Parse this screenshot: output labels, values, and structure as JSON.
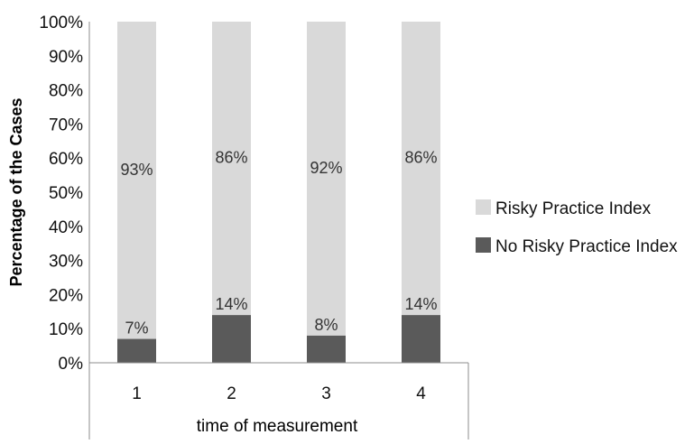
{
  "chart_data": {
    "type": "bar",
    "stacked": true,
    "categories": [
      "1",
      "2",
      "3",
      "4"
    ],
    "series": [
      {
        "name": "No Risky Practice Index",
        "values": [
          7,
          14,
          8,
          14
        ],
        "color": "#5a5a5a",
        "labels": [
          "7%",
          "14%",
          "8%",
          "14%"
        ]
      },
      {
        "name": "Risky Practice Index",
        "values": [
          93,
          86,
          92,
          86
        ],
        "color": "#d9d9d9",
        "labels": [
          "93%",
          "86%",
          "92%",
          "86%"
        ]
      }
    ],
    "xlabel": "time of measurement",
    "ylabel": "Percentage of the Cases",
    "ylim": [
      0,
      100
    ],
    "yticks": [
      "0%",
      "10%",
      "20%",
      "30%",
      "40%",
      "50%",
      "60%",
      "70%",
      "80%",
      "90%",
      "100%"
    ],
    "legend_position": "right",
    "grid": false
  }
}
